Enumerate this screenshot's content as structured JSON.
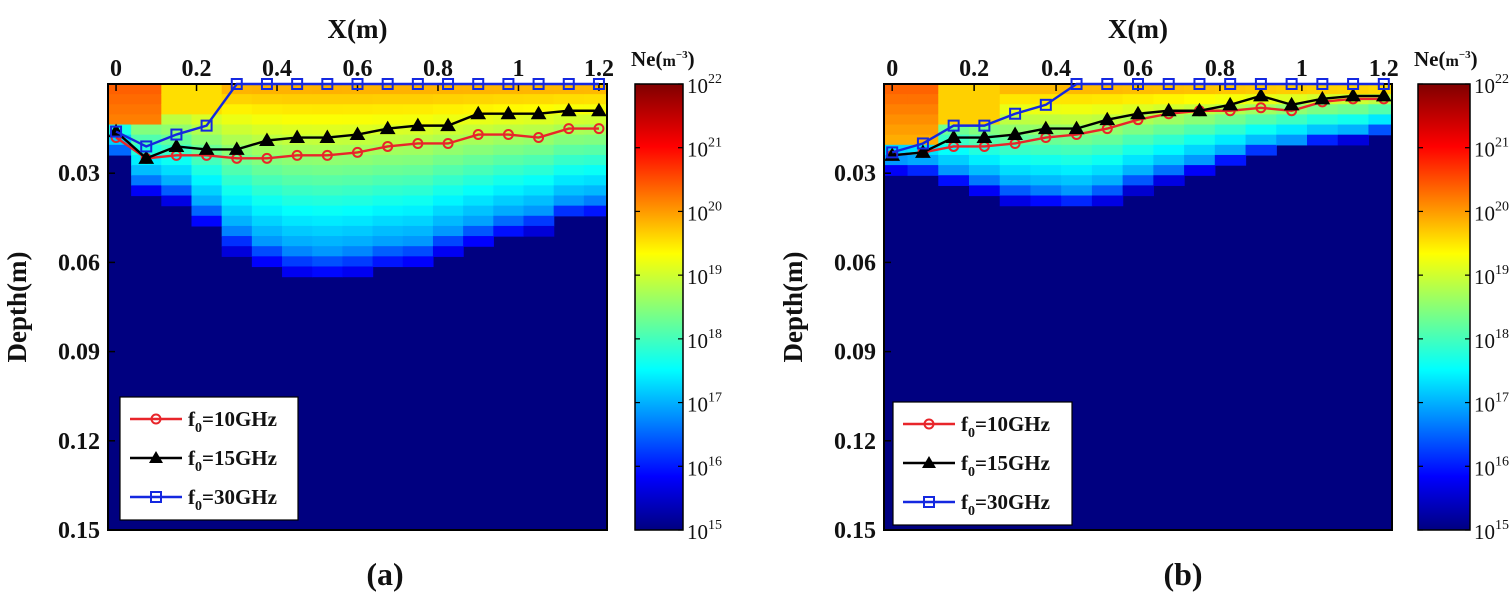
{
  "figure": {
    "colorbar": {
      "title_main": "Ne(",
      "title_unit": "m",
      "title_exp": "−3",
      "title_close": ")",
      "ticks": [
        {
          "base": "10",
          "exp": "22",
          "value": 22
        },
        {
          "base": "10",
          "exp": "21",
          "value": 21
        },
        {
          "base": "10",
          "exp": "20",
          "value": 20
        },
        {
          "base": "10",
          "exp": "19",
          "value": 19
        },
        {
          "base": "10",
          "exp": "18",
          "value": 18
        },
        {
          "base": "10",
          "exp": "17",
          "value": 17
        },
        {
          "base": "10",
          "exp": "16",
          "value": 16
        },
        {
          "base": "10",
          "exp": "15",
          "value": 15
        }
      ],
      "log_range": [
        15,
        22
      ]
    },
    "legend_entries": [
      {
        "prefix": "f",
        "sub": "0",
        "label": "=10GHz",
        "color": "#e8252a",
        "marker": "circle"
      },
      {
        "prefix": "f",
        "sub": "0",
        "label": "=15GHz",
        "color": "#000000",
        "marker": "triangle"
      },
      {
        "prefix": "f",
        "sub": "0",
        "label": "=30GHz",
        "color": "#1428e0",
        "marker": "square"
      }
    ]
  },
  "chart_data": [
    {
      "type": "heatmap",
      "caption": "(a)",
      "xlabel": "X(m)",
      "ylabel": "Depth(m)",
      "xlim": [
        -0.02,
        1.22
      ],
      "ylim": [
        0,
        0.15
      ],
      "x_ticks": [
        "0",
        "0.2",
        "0.4",
        "0.6",
        "0.8",
        "1",
        "1.2"
      ],
      "x_tick_values": [
        0,
        0.2,
        0.4,
        0.6,
        0.8,
        1,
        1.2
      ],
      "y_ticks": [
        "0.03",
        "0.06",
        "0.09",
        "0.12",
        "0.15"
      ],
      "y_tick_values": [
        0.03,
        0.06,
        0.09,
        0.12,
        0.15
      ],
      "heatmap_columns_x": [
        0,
        0.075,
        0.15,
        0.225,
        0.3,
        0.375,
        0.45,
        0.525,
        0.6,
        0.675,
        0.75,
        0.825,
        0.9,
        0.975,
        1.05,
        1.125,
        1.2
      ],
      "plasma_bottom_depth": [
        0.025,
        0.037,
        0.04,
        0.048,
        0.057,
        0.062,
        0.065,
        0.066,
        0.065,
        0.063,
        0.062,
        0.058,
        0.055,
        0.052,
        0.05,
        0.046,
        0.045
      ],
      "series": [
        {
          "name": "f0=10GHz",
          "x": [
            0,
            0.075,
            0.15,
            0.225,
            0.3,
            0.375,
            0.45,
            0.525,
            0.6,
            0.675,
            0.75,
            0.825,
            0.9,
            0.975,
            1.05,
            1.125,
            1.2
          ],
          "y": [
            0.018,
            0.025,
            0.024,
            0.024,
            0.025,
            0.025,
            0.024,
            0.024,
            0.023,
            0.021,
            0.02,
            0.02,
            0.017,
            0.017,
            0.018,
            0.015,
            0.015
          ]
        },
        {
          "name": "f0=15GHz",
          "x": [
            0,
            0.075,
            0.15,
            0.225,
            0.3,
            0.375,
            0.45,
            0.525,
            0.6,
            0.675,
            0.75,
            0.825,
            0.9,
            0.975,
            1.05,
            1.125,
            1.2
          ],
          "y": [
            0.016,
            0.025,
            0.021,
            0.022,
            0.022,
            0.019,
            0.018,
            0.018,
            0.017,
            0.015,
            0.014,
            0.014,
            0.01,
            0.01,
            0.01,
            0.009,
            0.009
          ]
        },
        {
          "name": "f0=30GHz",
          "x": [
            0,
            0.075,
            0.15,
            0.225,
            0.3,
            0.375,
            0.45,
            0.525,
            0.6,
            0.675,
            0.75,
            0.825,
            0.9,
            0.975,
            1.05,
            1.125,
            1.2
          ],
          "y": [
            0.016,
            0.021,
            0.017,
            0.014,
            0.0,
            0.0,
            0.0,
            0.0,
            0.0,
            0.0,
            0.0,
            0.0,
            0.0,
            0.0,
            0.0,
            0.0,
            0.0
          ]
        }
      ]
    },
    {
      "type": "heatmap",
      "caption": "(b)",
      "xlabel": "X(m)",
      "ylabel": "Depth(m)",
      "xlim": [
        -0.02,
        1.22
      ],
      "ylim": [
        0,
        0.15
      ],
      "x_ticks": [
        "0",
        "0.2",
        "0.4",
        "0.6",
        "0.8",
        "1",
        "1.2"
      ],
      "x_tick_values": [
        0,
        0.2,
        0.4,
        0.6,
        0.8,
        1,
        1.2
      ],
      "y_ticks": [
        "0.03",
        "0.06",
        "0.09",
        "0.12",
        "0.15"
      ],
      "y_tick_values": [
        0.03,
        0.06,
        0.09,
        0.12,
        0.15
      ],
      "heatmap_columns_x": [
        0,
        0.075,
        0.15,
        0.225,
        0.3,
        0.375,
        0.45,
        0.525,
        0.6,
        0.675,
        0.75,
        0.825,
        0.9,
        0.975,
        1.05,
        1.125,
        1.2
      ],
      "plasma_bottom_depth": [
        0.03,
        0.031,
        0.034,
        0.037,
        0.04,
        0.041,
        0.042,
        0.04,
        0.036,
        0.033,
        0.03,
        0.027,
        0.024,
        0.022,
        0.02,
        0.019,
        0.017
      ],
      "series": [
        {
          "name": "f0=10GHz",
          "x": [
            0,
            0.075,
            0.15,
            0.225,
            0.3,
            0.375,
            0.45,
            0.525,
            0.6,
            0.675,
            0.75,
            0.825,
            0.9,
            0.975,
            1.05,
            1.125,
            1.2
          ],
          "y": [
            0.024,
            0.023,
            0.021,
            0.021,
            0.02,
            0.018,
            0.017,
            0.015,
            0.012,
            0.01,
            0.009,
            0.009,
            0.008,
            0.009,
            0.006,
            0.005,
            0.005
          ]
        },
        {
          "name": "f0=15GHz",
          "x": [
            0,
            0.075,
            0.15,
            0.225,
            0.3,
            0.375,
            0.45,
            0.525,
            0.6,
            0.675,
            0.75,
            0.825,
            0.9,
            0.975,
            1.05,
            1.125,
            1.2
          ],
          "y": [
            0.024,
            0.023,
            0.018,
            0.018,
            0.017,
            0.015,
            0.015,
            0.012,
            0.01,
            0.009,
            0.009,
            0.007,
            0.004,
            0.007,
            0.005,
            0.004,
            0.004
          ]
        },
        {
          "name": "f0=30GHz",
          "x": [
            0,
            0.075,
            0.15,
            0.225,
            0.3,
            0.375,
            0.45,
            0.525,
            0.6,
            0.675,
            0.75,
            0.825,
            0.9,
            0.975,
            1.05,
            1.125,
            1.2
          ],
          "y": [
            0.023,
            0.02,
            0.014,
            0.014,
            0.01,
            0.007,
            0.0,
            0.0,
            0.0,
            0.0,
            0.0,
            0.0,
            0.0,
            0.0,
            0.0,
            0.0,
            0.0
          ]
        }
      ]
    }
  ]
}
